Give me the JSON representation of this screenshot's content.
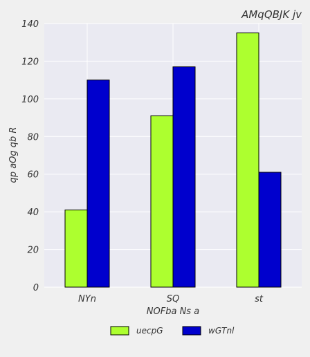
{
  "chart_data": {
    "type": "bar",
    "title": "AMqQBJK  jv",
    "xlabel": "NOFba Ns a",
    "ylabel": "qp aOg qb  R",
    "categories": [
      "NYn",
      "SQ",
      "st"
    ],
    "series": [
      {
        "name": "uecpG",
        "values": [
          41,
          91,
          135
        ],
        "color": "#adff2f"
      },
      {
        "name": "wGTnl",
        "values": [
          110,
          117,
          61
        ],
        "color": "#0000cd"
      }
    ],
    "ylim": [
      0,
      140
    ],
    "yticks": [
      0,
      20,
      40,
      60,
      80,
      100,
      120,
      140
    ],
    "grid": true,
    "legend_position": "bottom-center"
  },
  "colors": {
    "plot_background": "#eaeaf2",
    "page_background": "#f0f0f0",
    "grid": "#ffffff"
  }
}
